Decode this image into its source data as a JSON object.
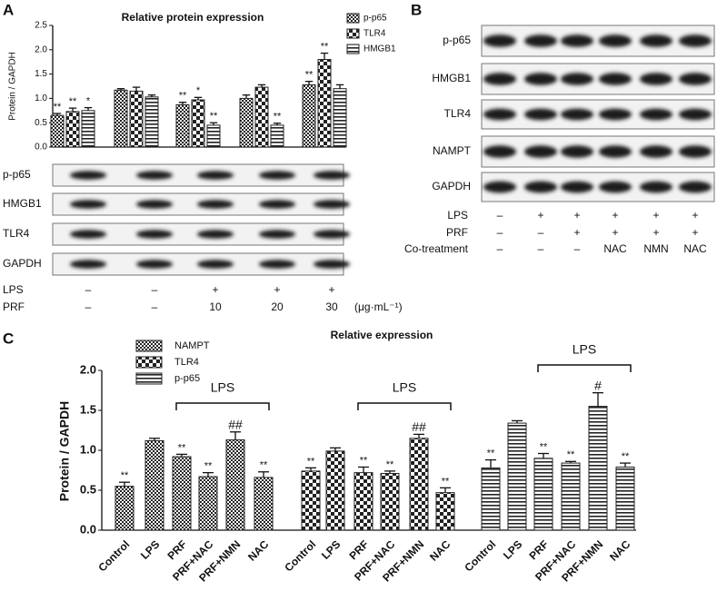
{
  "panel_labels": [
    "A",
    "B",
    "C"
  ],
  "chart_data": [
    {
      "type": "bar",
      "title": "Relative protein expression",
      "y_label": "Protein / GAPDH",
      "categories": [
        null,
        null,
        null,
        null,
        null
      ],
      "series": [
        {
          "name": "p-p65",
          "color": "#222222",
          "values": [
            0.65,
            1.17,
            0.87,
            1.0,
            1.28
          ],
          "errors": [
            0.04,
            0.03,
            0.05,
            0.07,
            0.07
          ],
          "annotations": [
            "**",
            null,
            "**",
            null,
            "**"
          ]
        },
        {
          "name": "TLR4",
          "color": "#222222",
          "values": [
            0.73,
            1.15,
            0.97,
            1.23,
            1.8
          ],
          "errors": [
            0.07,
            0.08,
            0.05,
            0.05,
            0.13
          ],
          "annotations": [
            "**",
            null,
            "*",
            null,
            "**"
          ]
        },
        {
          "name": "HMGB1",
          "color": "#222222",
          "values": [
            0.75,
            1.03,
            0.45,
            0.45,
            1.2
          ],
          "errors": [
            0.06,
            0.04,
            0.05,
            0.04,
            0.08
          ],
          "annotations": [
            "*",
            null,
            "**",
            "**",
            null
          ]
        }
      ],
      "ylim": [
        0,
        2.5
      ],
      "yticks": [
        {
          "value": 0,
          "label": "0.0"
        },
        {
          "value": 0.5,
          "label": "0.5"
        },
        {
          "value": 1,
          "label": "1.0"
        },
        {
          "value": 1.5,
          "label": "1.5"
        },
        {
          "value": 2,
          "label": "2.0"
        },
        {
          "value": 2.5,
          "label": "2.5"
        }
      ],
      "legend": "upper right"
    },
    {
      "type": "bar",
      "title": "Relative expression",
      "y_label": "Protein / GAPDH",
      "categories": [
        "Control",
        "LPS",
        "PRF",
        "PRF+NAC",
        "PRF+NMN",
        "NAC"
      ],
      "series": [
        {
          "name": "NAMPT",
          "color": "#222222",
          "values": [
            0.55,
            1.12,
            0.92,
            0.67,
            1.13,
            0.66
          ],
          "errors": [
            0.05,
            0.03,
            0.03,
            0.05,
            0.1,
            0.07
          ],
          "annotations": [
            "**",
            null,
            "**",
            "**",
            "##",
            "**"
          ],
          "bracket": "LPS"
        },
        {
          "name": "TLR4",
          "color": "#222222",
          "values": [
            0.74,
            0.99,
            0.72,
            0.71,
            1.15,
            0.47
          ],
          "errors": [
            0.04,
            0.04,
            0.07,
            0.03,
            0.05,
            0.06
          ],
          "annotations": [
            "**",
            null,
            "**",
            "**",
            "##",
            "**"
          ],
          "bracket": "LPS"
        },
        {
          "name": "p-p65",
          "color": "#222222",
          "values": [
            0.78,
            1.34,
            0.9,
            0.84,
            1.55,
            0.79
          ],
          "errors": [
            0.1,
            0.03,
            0.06,
            0.02,
            0.17,
            0.05
          ],
          "annotations": [
            "**",
            null,
            "**",
            "**",
            "#",
            "**"
          ],
          "bracket": "LPS"
        }
      ],
      "ylim": [
        0,
        2.0
      ],
      "yticks": [
        {
          "value": 0,
          "label": "0.0"
        },
        {
          "value": 0.5,
          "label": "0.5"
        },
        {
          "value": 1,
          "label": "1.0"
        },
        {
          "value": 1.5,
          "label": "1.5"
        },
        {
          "value": 2,
          "label": "2.0"
        }
      ],
      "legend": "upper left"
    }
  ],
  "blots_a": {
    "rows": [
      "p-p65",
      "HMGB1",
      "TLR4",
      "GAPDH"
    ],
    "conditions": [
      {
        "name": "LPS",
        "values": [
          "–",
          "–",
          "+",
          "+",
          "+"
        ]
      },
      {
        "name": "PRF",
        "values": [
          "–",
          "–",
          "10",
          "20",
          "30"
        ]
      }
    ],
    "unit": "(μg·mL⁻¹)"
  },
  "blots_b": {
    "rows": [
      "p-p65",
      "HMGB1",
      "TLR4",
      "NAMPT",
      "GAPDH"
    ],
    "conditions": [
      {
        "name": "LPS",
        "values": [
          "–",
          "+",
          "+",
          "+",
          "+",
          "+"
        ]
      },
      {
        "name": "PRF",
        "values": [
          "–",
          "–",
          "+",
          "+",
          "+",
          "+"
        ]
      },
      {
        "name": "Co-treatment",
        "values": [
          "–",
          "–",
          "–",
          "NAC",
          "NMN",
          "NAC"
        ]
      }
    ]
  }
}
